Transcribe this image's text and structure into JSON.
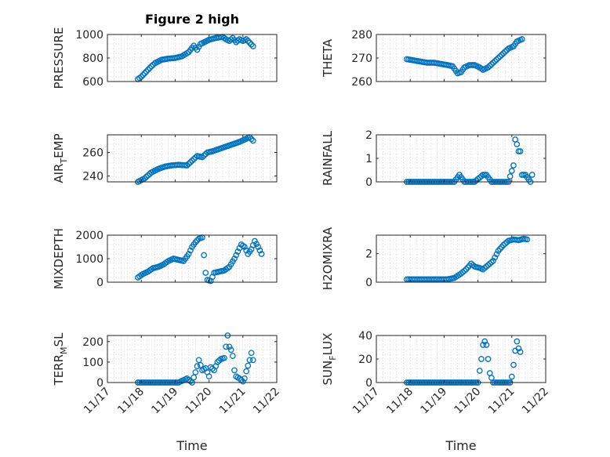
{
  "figure": {
    "title": "Figure 2 high",
    "xlabel": "Time",
    "x_ticks": [
      "11/17",
      "11/18",
      "11/19",
      "11/20",
      "11/21",
      "11/22"
    ]
  },
  "chart_data": [
    {
      "id": "pressure",
      "type": "scatter",
      "ylabel": "PRESSURE",
      "ylim": [
        600,
        1000
      ],
      "yticks": [
        "600",
        "800",
        "1000"
      ],
      "grid": true,
      "x_unit": "day of Nov",
      "xlim": [
        17,
        22
      ],
      "points": [
        [
          17.9,
          620
        ],
        [
          18.0,
          640
        ],
        [
          18.1,
          670
        ],
        [
          18.2,
          700
        ],
        [
          18.3,
          730
        ],
        [
          18.4,
          755
        ],
        [
          18.5,
          770
        ],
        [
          18.6,
          785
        ],
        [
          18.8,
          795
        ],
        [
          19.0,
          800
        ],
        [
          19.2,
          815
        ],
        [
          19.4,
          850
        ],
        [
          19.55,
          905
        ],
        [
          19.65,
          870
        ],
        [
          19.75,
          920
        ],
        [
          19.9,
          940
        ],
        [
          20.0,
          955
        ],
        [
          20.2,
          970
        ],
        [
          20.4,
          980
        ],
        [
          20.5,
          960
        ],
        [
          20.6,
          945
        ],
        [
          20.7,
          970
        ],
        [
          20.8,
          935
        ],
        [
          20.9,
          960
        ],
        [
          21.0,
          945
        ],
        [
          21.1,
          960
        ],
        [
          21.2,
          930
        ],
        [
          21.3,
          900
        ]
      ]
    },
    {
      "id": "theta",
      "type": "scatter",
      "ylabel": "THETA",
      "ylim": [
        260,
        280
      ],
      "yticks": [
        "260",
        "270",
        "280"
      ],
      "grid": true,
      "x_unit": "day of Nov",
      "xlim": [
        17,
        22
      ],
      "points": [
        [
          17.9,
          269.5
        ],
        [
          18.1,
          269
        ],
        [
          18.3,
          268.5
        ],
        [
          18.5,
          268
        ],
        [
          18.7,
          268
        ],
        [
          18.9,
          267.5
        ],
        [
          19.1,
          267
        ],
        [
          19.25,
          266.5
        ],
        [
          19.4,
          263.5
        ],
        [
          19.5,
          264
        ],
        [
          19.6,
          266
        ],
        [
          19.75,
          267
        ],
        [
          19.9,
          267
        ],
        [
          20.05,
          266
        ],
        [
          20.15,
          265
        ],
        [
          20.3,
          266
        ],
        [
          20.45,
          268
        ],
        [
          20.6,
          270
        ],
        [
          20.75,
          272
        ],
        [
          20.9,
          274
        ],
        [
          21.05,
          275
        ],
        [
          21.15,
          277
        ],
        [
          21.3,
          278
        ]
      ]
    },
    {
      "id": "air_temp",
      "type": "scatter",
      "ylabel": "AIR",
      "ylabel_sub": "T",
      "ylabel_suffix": "EMP",
      "ylim": [
        235,
        275
      ],
      "yticks": [
        "240",
        "260"
      ],
      "grid": true,
      "x_unit": "day of Nov",
      "xlim": [
        17,
        22
      ],
      "points": [
        [
          17.9,
          235
        ],
        [
          18.1,
          238
        ],
        [
          18.3,
          243
        ],
        [
          18.5,
          246
        ],
        [
          18.7,
          248
        ],
        [
          18.9,
          249
        ],
        [
          19.1,
          249.5
        ],
        [
          19.35,
          249
        ],
        [
          19.5,
          253
        ],
        [
          19.65,
          257
        ],
        [
          19.8,
          256
        ],
        [
          19.95,
          260
        ],
        [
          20.1,
          261
        ],
        [
          20.3,
          263
        ],
        [
          20.5,
          265
        ],
        [
          20.7,
          267
        ],
        [
          20.9,
          269
        ],
        [
          21.05,
          271
        ],
        [
          21.2,
          273
        ],
        [
          21.3,
          270
        ]
      ]
    },
    {
      "id": "rainfall",
      "type": "scatter",
      "ylabel": "RAINFALL",
      "ylim": [
        0,
        2
      ],
      "yticks": [
        "0",
        "1",
        "2"
      ],
      "grid": true,
      "x_unit": "day of Nov",
      "xlim": [
        17,
        22
      ],
      "points": [
        [
          17.9,
          0
        ],
        [
          18.2,
          0
        ],
        [
          18.5,
          0
        ],
        [
          18.8,
          0
        ],
        [
          19.1,
          0
        ],
        [
          19.3,
          0
        ],
        [
          19.45,
          0.3
        ],
        [
          19.6,
          0
        ],
        [
          19.9,
          0
        ],
        [
          20.15,
          0.3
        ],
        [
          20.25,
          0.3
        ],
        [
          20.4,
          0
        ],
        [
          20.7,
          0
        ],
        [
          20.9,
          0
        ],
        [
          21.05,
          0.7
        ],
        [
          21.1,
          1.8
        ],
        [
          21.15,
          1.6
        ],
        [
          21.2,
          1.3
        ],
        [
          21.25,
          1.3
        ],
        [
          21.3,
          0.3
        ],
        [
          21.4,
          0.3
        ],
        [
          21.5,
          0.1
        ],
        [
          21.55,
          0
        ],
        [
          21.6,
          0.3
        ]
      ]
    },
    {
      "id": "mixdepth",
      "type": "scatter",
      "ylabel": "MIXDEPTH",
      "ylim": [
        0,
        2000
      ],
      "yticks": [
        "0",
        "1000",
        "2000"
      ],
      "grid": true,
      "x_unit": "day of Nov",
      "xlim": [
        17,
        22
      ],
      "points": [
        [
          17.9,
          200
        ],
        [
          18.05,
          350
        ],
        [
          18.2,
          450
        ],
        [
          18.35,
          600
        ],
        [
          18.5,
          650
        ],
        [
          18.65,
          750
        ],
        [
          18.8,
          900
        ],
        [
          18.95,
          1000
        ],
        [
          19.1,
          950
        ],
        [
          19.25,
          900
        ],
        [
          19.4,
          1200
        ],
        [
          19.5,
          1500
        ],
        [
          19.6,
          1700
        ],
        [
          19.7,
          1850
        ],
        [
          19.8,
          1900
        ],
        [
          19.9,
          400
        ],
        [
          19.95,
          100
        ],
        [
          20.05,
          50
        ],
        [
          20.15,
          400
        ],
        [
          20.3,
          450
        ],
        [
          20.45,
          500
        ],
        [
          20.6,
          650
        ],
        [
          20.75,
          1000
        ],
        [
          20.85,
          1300
        ],
        [
          20.95,
          1600
        ],
        [
          21.05,
          1500
        ],
        [
          21.15,
          1200
        ],
        [
          21.25,
          1400
        ],
        [
          21.35,
          1750
        ],
        [
          21.45,
          1500
        ],
        [
          21.55,
          1200
        ]
      ]
    },
    {
      "id": "h2omixra",
      "type": "scatter",
      "ylabel": "H2OMIXRA",
      "ylim": [
        0,
        3.3
      ],
      "yticks": [
        "0",
        "2"
      ],
      "grid": true,
      "x_unit": "day of Nov",
      "xlim": [
        17,
        22
      ],
      "points": [
        [
          17.9,
          0.2
        ],
        [
          18.2,
          0.2
        ],
        [
          18.5,
          0.2
        ],
        [
          18.8,
          0.2
        ],
        [
          19.1,
          0.2
        ],
        [
          19.3,
          0.3
        ],
        [
          19.5,
          0.6
        ],
        [
          19.65,
          0.9
        ],
        [
          19.8,
          1.3
        ],
        [
          19.9,
          1.1
        ],
        [
          20.05,
          1.0
        ],
        [
          20.15,
          0.9
        ],
        [
          20.3,
          1.2
        ],
        [
          20.45,
          1.5
        ],
        [
          20.6,
          2.2
        ],
        [
          20.75,
          2.6
        ],
        [
          20.9,
          2.9
        ],
        [
          21.05,
          3.0
        ],
        [
          21.2,
          2.95
        ],
        [
          21.35,
          3.05
        ],
        [
          21.45,
          3.0
        ]
      ]
    },
    {
      "id": "terr_msl",
      "type": "scatter",
      "ylabel": "TERR",
      "ylabel_sub": "M",
      "ylabel_suffix": "SL",
      "ylim": [
        0,
        230
      ],
      "yticks": [
        "0",
        "100",
        "200"
      ],
      "grid": true,
      "x_unit": "day of Nov",
      "xlim": [
        17,
        22
      ],
      "points": [
        [
          17.9,
          0
        ],
        [
          18.3,
          0
        ],
        [
          18.7,
          0
        ],
        [
          19.1,
          0
        ],
        [
          19.35,
          20
        ],
        [
          19.5,
          0
        ],
        [
          19.6,
          50
        ],
        [
          19.7,
          110
        ],
        [
          19.8,
          60
        ],
        [
          19.9,
          70
        ],
        [
          20.0,
          30
        ],
        [
          20.05,
          75
        ],
        [
          20.15,
          60
        ],
        [
          20.25,
          100
        ],
        [
          20.35,
          115
        ],
        [
          20.45,
          120
        ],
        [
          20.5,
          175
        ],
        [
          20.55,
          230
        ],
        [
          20.6,
          175
        ],
        [
          20.65,
          160
        ],
        [
          20.7,
          130
        ],
        [
          20.75,
          60
        ],
        [
          20.8,
          30
        ],
        [
          20.9,
          20
        ],
        [
          21.0,
          5
        ],
        [
          21.05,
          20
        ],
        [
          21.1,
          55
        ],
        [
          21.2,
          110
        ],
        [
          21.25,
          145
        ],
        [
          21.3,
          110
        ]
      ]
    },
    {
      "id": "sun_flux",
      "type": "scatter",
      "ylabel": "SUN",
      "ylabel_sub": "F",
      "ylabel_suffix": "LUX",
      "ylim": [
        0,
        40
      ],
      "yticks": [
        "0",
        "20",
        "40"
      ],
      "grid": true,
      "x_unit": "day of Nov",
      "xlim": [
        17,
        22
      ],
      "points": [
        [
          17.9,
          0
        ],
        [
          18.3,
          0
        ],
        [
          18.7,
          0
        ],
        [
          19.1,
          0
        ],
        [
          19.4,
          0
        ],
        [
          19.7,
          0
        ],
        [
          20.0,
          0
        ],
        [
          20.05,
          10
        ],
        [
          20.1,
          20
        ],
        [
          20.15,
          32
        ],
        [
          20.2,
          35
        ],
        [
          20.25,
          32
        ],
        [
          20.3,
          20
        ],
        [
          20.35,
          8
        ],
        [
          20.45,
          0
        ],
        [
          20.7,
          0
        ],
        [
          20.95,
          0
        ],
        [
          21.0,
          5
        ],
        [
          21.05,
          15
        ],
        [
          21.1,
          27
        ],
        [
          21.15,
          35
        ],
        [
          21.2,
          29
        ],
        [
          21.25,
          26
        ]
      ]
    }
  ]
}
